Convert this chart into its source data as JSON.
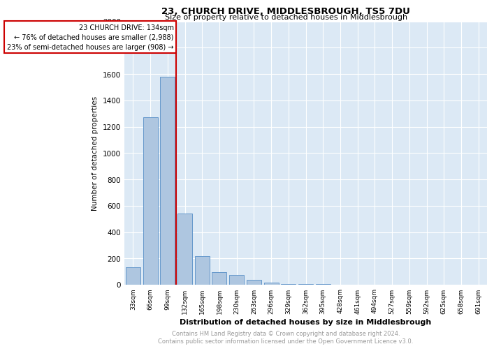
{
  "title1": "23, CHURCH DRIVE, MIDDLESBROUGH, TS5 7DU",
  "title2": "Size of property relative to detached houses in Middlesbrough",
  "xlabel": "Distribution of detached houses by size in Middlesbrough",
  "ylabel": "Number of detached properties",
  "categories": [
    "33sqm",
    "66sqm",
    "99sqm",
    "132sqm",
    "165sqm",
    "198sqm",
    "230sqm",
    "263sqm",
    "296sqm",
    "329sqm",
    "362sqm",
    "395sqm",
    "428sqm",
    "461sqm",
    "494sqm",
    "527sqm",
    "559sqm",
    "592sqm",
    "625sqm",
    "658sqm",
    "691sqm"
  ],
  "values": [
    130,
    1270,
    1580,
    540,
    215,
    95,
    75,
    35,
    15,
    5,
    5,
    5,
    0,
    0,
    0,
    0,
    0,
    0,
    0,
    0,
    0
  ],
  "bar_color": "#aec6e0",
  "bar_edge_color": "#6699cc",
  "highlight_line_color": "#cc0000",
  "annotation_box_text": "23 CHURCH DRIVE: 134sqm\n← 76% of detached houses are smaller (2,988)\n23% of semi-detached houses are larger (908) →",
  "annotation_box_color": "#cc0000",
  "ylim": [
    0,
    2000
  ],
  "yticks": [
    0,
    200,
    400,
    600,
    800,
    1000,
    1200,
    1400,
    1600,
    1800,
    2000
  ],
  "footer_text": "Contains HM Land Registry data © Crown copyright and database right 2024.\nContains public sector information licensed under the Open Government Licence v3.0.",
  "plot_bg_color": "#dce9f5",
  "grid_color": "#ffffff"
}
